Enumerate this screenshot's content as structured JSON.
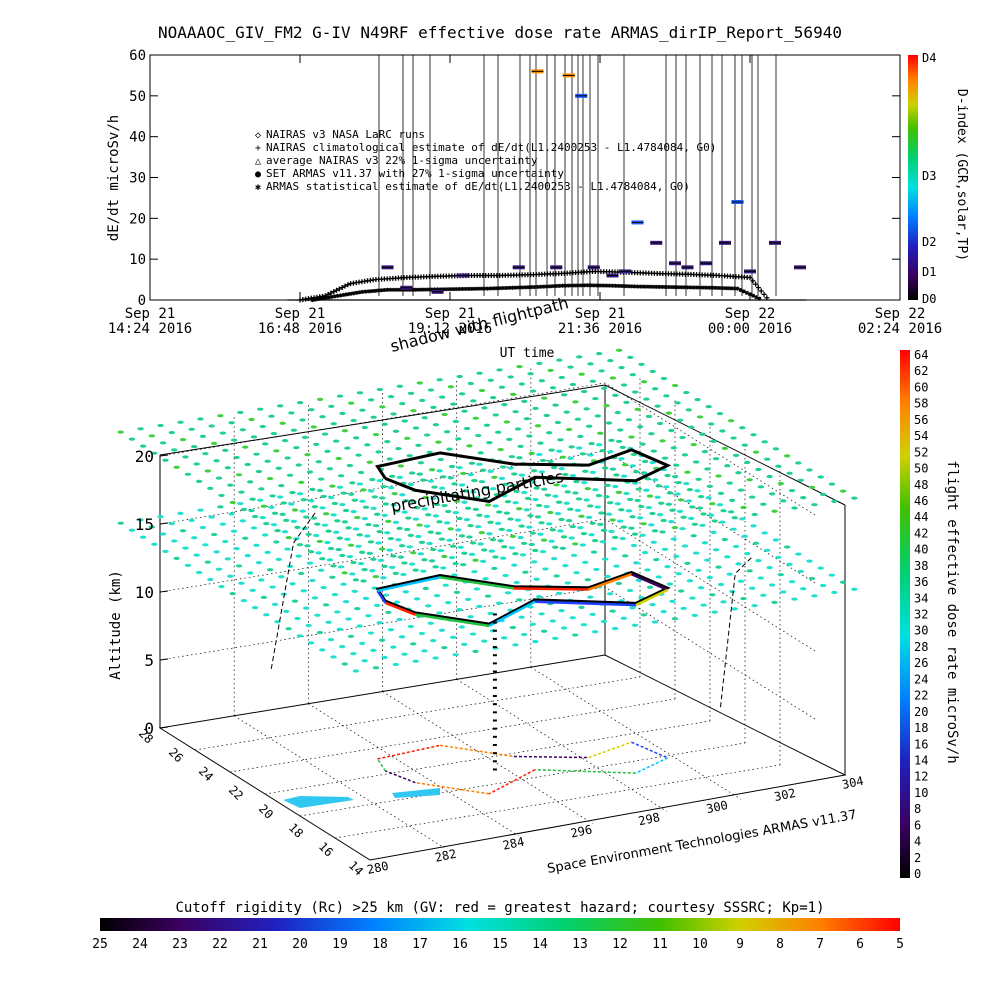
{
  "title": "NOAAAOC_GIV_FM2 G-IV   N49RF   effective dose rate ARMAS_dirIP_Report_56940",
  "chart_data": [
    {
      "type": "scatter",
      "ylabel": "dE/dt microSv/h",
      "xlabel": "UT time",
      "ylim": [
        0,
        60
      ],
      "yticks": [
        "0",
        "10",
        "20",
        "30",
        "40",
        "50",
        "60"
      ],
      "xticks": [
        {
          "l1": "Sep 21",
          "l2": "14:24 2016"
        },
        {
          "l1": "Sep 21",
          "l2": "16:48 2016"
        },
        {
          "l1": "Sep 21",
          "l2": "19:12 2016"
        },
        {
          "l1": "Sep 21",
          "l2": "21:36 2016"
        },
        {
          "l1": "Sep 22",
          "l2": "00:00 2016"
        },
        {
          "l1": "Sep 22",
          "l2": "02:24 2016"
        }
      ],
      "legend": [
        {
          "symbol": "◇",
          "text": "NAIRAS v3 NASA LaRC runs"
        },
        {
          "symbol": "+",
          "text": "NAIRAS climatological estimate of dE/dt(L1.2400253 - L1.4784084, G0)"
        },
        {
          "symbol": "△",
          "text": "average NAIRAS v3 22% 1-sigma uncertainty"
        },
        {
          "symbol": "●",
          "text": "SET ARMAS v11.37 with 27% 1-sigma uncertainty"
        },
        {
          "symbol": "✱",
          "text": "ARMAS statistical estimate of dE/dt(L1.2400253 - L1.4784084, G0)"
        }
      ],
      "series": [
        {
          "name": "NAIRAS climatological estimate of dE/dt(L1.2400253 - L1.4784084, G0)",
          "x_hours": [
            16.8,
            17.2,
            17.6,
            18.0,
            18.5,
            19.0,
            19.5,
            20.0,
            20.5,
            21.0,
            21.5,
            22.0,
            22.5,
            23.0,
            23.5,
            24.0,
            24.3
          ],
          "values": [
            0,
            1,
            4,
            5,
            5.5,
            5.8,
            6,
            6,
            6.2,
            6.5,
            7,
            6.8,
            6.5,
            6.3,
            6,
            5.5,
            0
          ]
        },
        {
          "name": "ARMAS statistical estimate of dE/dt(L1.2400253 - L1.4784084, G0)",
          "x_hours": [
            17.0,
            17.4,
            17.8,
            18.2,
            18.6,
            19.0,
            19.4,
            19.8,
            20.2,
            20.6,
            21.0,
            21.4,
            21.8,
            22.2,
            22.6,
            23.0,
            23.4,
            23.8,
            24.2
          ],
          "values": [
            0,
            1,
            2,
            2.5,
            2.5,
            2.6,
            2.7,
            2.8,
            3,
            3.2,
            3.5,
            3.6,
            3.5,
            3.3,
            3.2,
            3.1,
            3,
            2.8,
            0
          ]
        },
        {
          "name": "SET ARMAS v11.37 with 27% 1-sigma uncertainty",
          "x_hours": [
            18.2,
            18.5,
            19.0,
            19.4,
            20.3,
            20.6,
            20.9,
            21.1,
            21.3,
            21.5,
            21.8,
            22.0,
            22.2,
            22.5,
            22.8,
            23.0,
            23.3,
            23.6,
            23.8,
            24.0,
            24.4,
            24.8
          ],
          "values": [
            8,
            3,
            2,
            6,
            8,
            56,
            8,
            55,
            50,
            8,
            6,
            7,
            19,
            14,
            9,
            8,
            9,
            14,
            24,
            7,
            14,
            8
          ]
        }
      ],
      "colorbar": {
        "label": "D-index (GCR,solar,TP)",
        "ticks": [
          "D0",
          "D1",
          "D2",
          "D3",
          "D4"
        ]
      }
    },
    {
      "type": "scatter",
      "zlabel": "Altitude (km)",
      "zticks": [
        "0",
        "5",
        "10",
        "15",
        "20"
      ],
      "xticks": [
        "280",
        "282",
        "284",
        "296",
        "298",
        "300",
        "302",
        "304"
      ],
      "yticks": [
        "14",
        "16",
        "18",
        "20",
        "22",
        "24",
        "26",
        "28"
      ],
      "annotations": [
        "shadow with flightpath",
        "precipitating particles"
      ],
      "credit": "Space Environment Technologies ARMAS v11.37",
      "colorbar": {
        "label": "flight effective dose rate microSv/h",
        "ticks": [
          "0",
          "2",
          "4",
          "6",
          "8",
          "10",
          "12",
          "14",
          "16",
          "18",
          "20",
          "22",
          "24",
          "26",
          "28",
          "30",
          "32",
          "34",
          "36",
          "38",
          "40",
          "42",
          "44",
          "46",
          "48",
          "50",
          "52",
          "54",
          "56",
          "58",
          "60",
          "62",
          "64"
        ]
      }
    }
  ],
  "bottom_colorbar": {
    "label": "Cutoff rigidity (Rc) >25 km (GV: red = greatest hazard; courtesy SSSRC; Kp=1)",
    "ticks": [
      "25",
      "24",
      "23",
      "22",
      "21",
      "20",
      "19",
      "18",
      "17",
      "16",
      "15",
      "14",
      "13",
      "12",
      "11",
      "10",
      "9",
      "8",
      "7",
      "6",
      "5"
    ]
  },
  "colors": {
    "rainbow": [
      "#000000",
      "#3a0060",
      "#2020c0",
      "#0080ff",
      "#00e0e0",
      "#00d070",
      "#40c000",
      "#d0d000",
      "#ff9000",
      "#ff3000",
      "#ff0000"
    ]
  }
}
